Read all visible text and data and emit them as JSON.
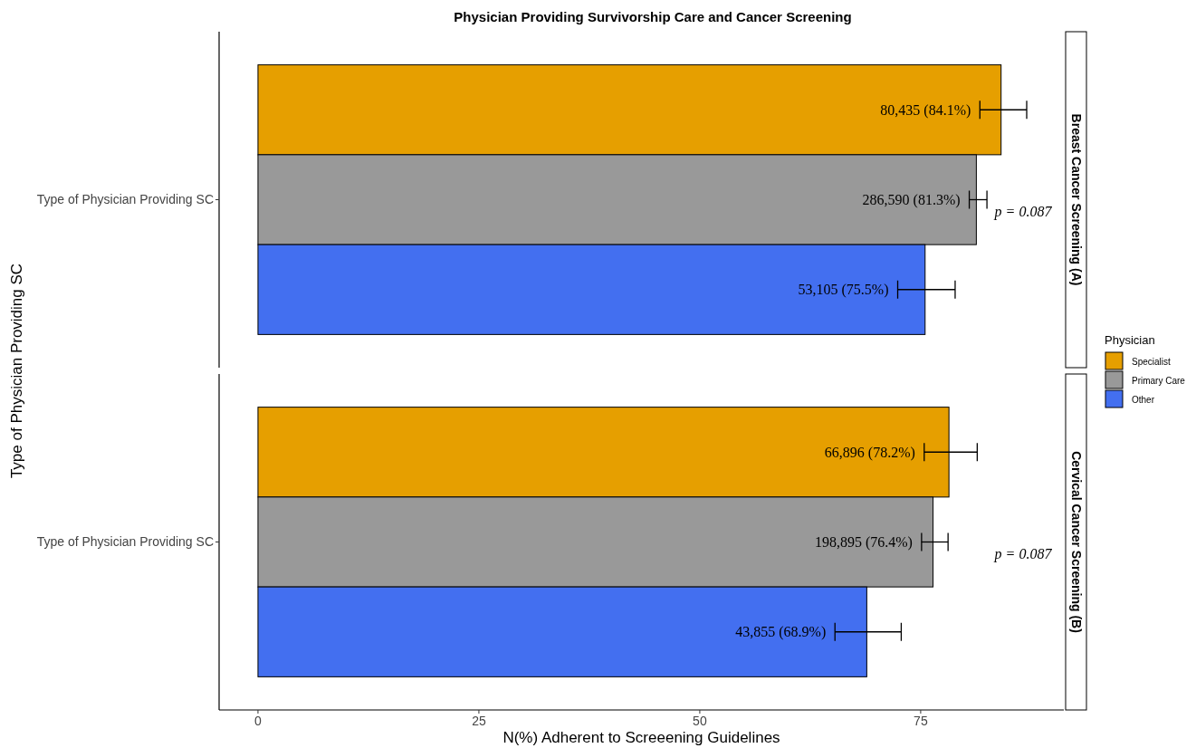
{
  "chart_data": {
    "type": "bar",
    "orientation": "horizontal",
    "title": "Physician Providing Survivorship Care and Cancer Screening",
    "xlabel": "N(%) Adherent to Screeening Guidelines",
    "ylabel": "Type of Physician Providing SC",
    "legend_title": "Physician",
    "legend": "right",
    "categories": [
      "Type of Physician Providing SC",
      "Type of Physician Providing SC"
    ],
    "xlim": [
      -4.4,
      91.2
    ],
    "xticks": [
      0,
      25,
      50,
      75
    ],
    "annotations": [
      "Breast Cancer Screening (A)",
      "Cervical Cancer Screening (B)",
      "p = 0.087",
      "p = 0.087"
    ],
    "series": [
      {
        "name": "Specialist",
        "color": "#e69f00",
        "values": [
          84.1,
          78.2
        ],
        "errors": [
          [
            81.7,
            87.0
          ],
          [
            75.4,
            81.4
          ]
        ],
        "value_labels": [
          "80,435 (84.1%)",
          "66,896 (78.2%)"
        ]
      },
      {
        "name": "Primary Care",
        "color": "#999999",
        "values": [
          81.3,
          76.4
        ],
        "errors": [
          [
            80.5,
            82.5
          ],
          [
            75.1,
            78.1
          ]
        ],
        "value_labels": [
          "286,590 (81.3%)",
          "198,895 (76.4%)"
        ]
      },
      {
        "name": "Other",
        "color": "#436ff0",
        "values": [
          75.5,
          68.9
        ],
        "errors": [
          [
            72.4,
            78.9
          ],
          [
            65.3,
            72.8
          ]
        ],
        "value_labels": [
          "53,105 (75.5%)",
          "43,855 (68.9%)"
        ]
      }
    ]
  }
}
